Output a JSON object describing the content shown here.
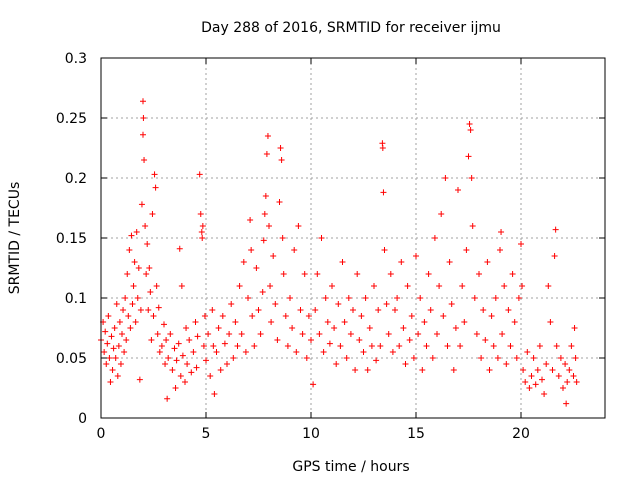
{
  "chart_data": {
    "type": "scatter",
    "title": "Day 288 of 2016, SRMTID for receiver ijmu",
    "xlabel": "GPS time / hours",
    "ylabel": "SRMTID / TECUs",
    "xlim": [
      0,
      24
    ],
    "ylim": [
      0,
      0.3
    ],
    "xticks": [
      0,
      5,
      10,
      15,
      20
    ],
    "yticks": [
      0,
      0.05,
      0.1,
      0.15,
      0.2,
      0.25,
      0.3
    ],
    "xtick_labels": [
      "0",
      "5",
      "10",
      "15",
      "20"
    ],
    "ytick_labels": [
      "0",
      "0.05",
      "0.1",
      "0.15",
      "0.2",
      "0.25",
      "0.3"
    ],
    "grid": true,
    "marker": "+",
    "series": [
      {
        "name": "SRMTID",
        "color": "#ff0000",
        "points": [
          [
            0.0,
            0.065
          ],
          [
            0.1,
            0.08
          ],
          [
            0.15,
            0.055
          ],
          [
            0.2,
            0.072
          ],
          [
            0.25,
            0.045
          ],
          [
            0.3,
            0.062
          ],
          [
            0.35,
            0.085
          ],
          [
            0.4,
            0.05
          ],
          [
            0.45,
            0.03
          ],
          [
            0.5,
            0.068
          ],
          [
            0.55,
            0.04
          ],
          [
            0.6,
            0.058
          ],
          [
            0.65,
            0.075
          ],
          [
            0.7,
            0.05
          ],
          [
            0.75,
            0.095
          ],
          [
            0.8,
            0.035
          ],
          [
            0.85,
            0.06
          ],
          [
            0.9,
            0.08
          ],
          [
            0.95,
            0.045
          ],
          [
            1.0,
            0.07
          ],
          [
            1.05,
            0.09
          ],
          [
            1.1,
            0.055
          ],
          [
            1.15,
            0.1
          ],
          [
            1.2,
            0.065
          ],
          [
            1.25,
            0.12
          ],
          [
            1.3,
            0.085
          ],
          [
            1.35,
            0.14
          ],
          [
            1.4,
            0.075
          ],
          [
            1.45,
            0.152
          ],
          [
            1.5,
            0.095
          ],
          [
            1.55,
            0.11
          ],
          [
            1.6,
            0.13
          ],
          [
            1.65,
            0.08
          ],
          [
            1.7,
            0.155
          ],
          [
            1.75,
            0.1
          ],
          [
            1.8,
            0.125
          ],
          [
            1.85,
            0.032
          ],
          [
            1.9,
            0.09
          ],
          [
            1.95,
            0.178
          ],
          [
            2.0,
            0.236
          ],
          [
            2.0,
            0.264
          ],
          [
            2.02,
            0.25
          ],
          [
            2.05,
            0.215
          ],
          [
            2.1,
            0.16
          ],
          [
            2.15,
            0.12
          ],
          [
            2.2,
            0.145
          ],
          [
            2.25,
            0.09
          ],
          [
            2.3,
            0.125
          ],
          [
            2.35,
            0.105
          ],
          [
            2.4,
            0.065
          ],
          [
            2.45,
            0.17
          ],
          [
            2.5,
            0.085
          ],
          [
            2.55,
            0.203
          ],
          [
            2.6,
            0.192
          ],
          [
            2.65,
            0.11
          ],
          [
            2.7,
            0.07
          ],
          [
            2.75,
            0.092
          ],
          [
            2.8,
            0.055
          ],
          [
            2.9,
            0.06
          ],
          [
            3.0,
            0.078
          ],
          [
            3.05,
            0.045
          ],
          [
            3.1,
            0.065
          ],
          [
            3.15,
            0.016
          ],
          [
            3.2,
            0.05
          ],
          [
            3.3,
            0.07
          ],
          [
            3.4,
            0.04
          ],
          [
            3.5,
            0.058
          ],
          [
            3.55,
            0.025
          ],
          [
            3.6,
            0.048
          ],
          [
            3.7,
            0.062
          ],
          [
            3.75,
            0.141
          ],
          [
            3.8,
            0.035
          ],
          [
            3.85,
            0.11
          ],
          [
            3.9,
            0.052
          ],
          [
            4.0,
            0.03
          ],
          [
            4.05,
            0.075
          ],
          [
            4.1,
            0.045
          ],
          [
            4.2,
            0.065
          ],
          [
            4.3,
            0.038
          ],
          [
            4.4,
            0.055
          ],
          [
            4.5,
            0.08
          ],
          [
            4.55,
            0.042
          ],
          [
            4.6,
            0.068
          ],
          [
            4.7,
            0.203
          ],
          [
            4.75,
            0.17
          ],
          [
            4.8,
            0.155
          ],
          [
            4.82,
            0.15
          ],
          [
            4.85,
            0.16
          ],
          [
            4.9,
            0.06
          ],
          [
            4.95,
            0.085
          ],
          [
            5.0,
            0.048
          ],
          [
            5.1,
            0.07
          ],
          [
            5.2,
            0.035
          ],
          [
            5.3,
            0.09
          ],
          [
            5.35,
            0.06
          ],
          [
            5.4,
            0.02
          ],
          [
            5.5,
            0.055
          ],
          [
            5.6,
            0.075
          ],
          [
            5.7,
            0.04
          ],
          [
            5.8,
            0.085
          ],
          [
            5.9,
            0.062
          ],
          [
            6.0,
            0.045
          ],
          [
            6.1,
            0.07
          ],
          [
            6.2,
            0.095
          ],
          [
            6.3,
            0.05
          ],
          [
            6.4,
            0.08
          ],
          [
            6.5,
            0.06
          ],
          [
            6.6,
            0.11
          ],
          [
            6.7,
            0.07
          ],
          [
            6.8,
            0.13
          ],
          [
            6.9,
            0.055
          ],
          [
            7.0,
            0.1
          ],
          [
            7.1,
            0.165
          ],
          [
            7.15,
            0.14
          ],
          [
            7.2,
            0.085
          ],
          [
            7.3,
            0.06
          ],
          [
            7.4,
            0.125
          ],
          [
            7.5,
            0.09
          ],
          [
            7.6,
            0.07
          ],
          [
            7.7,
            0.105
          ],
          [
            7.75,
            0.148
          ],
          [
            7.8,
            0.17
          ],
          [
            7.85,
            0.185
          ],
          [
            7.9,
            0.22
          ],
          [
            7.95,
            0.235
          ],
          [
            8.0,
            0.16
          ],
          [
            8.05,
            0.11
          ],
          [
            8.1,
            0.08
          ],
          [
            8.2,
            0.135
          ],
          [
            8.3,
            0.095
          ],
          [
            8.4,
            0.065
          ],
          [
            8.5,
            0.18
          ],
          [
            8.55,
            0.225
          ],
          [
            8.6,
            0.215
          ],
          [
            8.65,
            0.15
          ],
          [
            8.7,
            0.12
          ],
          [
            8.8,
            0.085
          ],
          [
            8.9,
            0.06
          ],
          [
            9.0,
            0.1
          ],
          [
            9.1,
            0.075
          ],
          [
            9.2,
            0.14
          ],
          [
            9.3,
            0.055
          ],
          [
            9.4,
            0.16
          ],
          [
            9.5,
            0.09
          ],
          [
            9.6,
            0.07
          ],
          [
            9.7,
            0.12
          ],
          [
            9.8,
            0.05
          ],
          [
            9.9,
            0.085
          ],
          [
            10.0,
            0.065
          ],
          [
            10.1,
            0.028
          ],
          [
            10.2,
            0.09
          ],
          [
            10.3,
            0.12
          ],
          [
            10.4,
            0.07
          ],
          [
            10.5,
            0.15
          ],
          [
            10.6,
            0.055
          ],
          [
            10.7,
            0.1
          ],
          [
            10.8,
            0.08
          ],
          [
            10.9,
            0.062
          ],
          [
            11.0,
            0.11
          ],
          [
            11.1,
            0.075
          ],
          [
            11.2,
            0.045
          ],
          [
            11.3,
            0.095
          ],
          [
            11.4,
            0.06
          ],
          [
            11.5,
            0.13
          ],
          [
            11.6,
            0.08
          ],
          [
            11.7,
            0.05
          ],
          [
            11.8,
            0.1
          ],
          [
            11.9,
            0.07
          ],
          [
            12.0,
            0.09
          ],
          [
            12.1,
            0.04
          ],
          [
            12.2,
            0.12
          ],
          [
            12.3,
            0.065
          ],
          [
            12.4,
            0.085
          ],
          [
            12.5,
            0.055
          ],
          [
            12.6,
            0.1
          ],
          [
            12.7,
            0.04
          ],
          [
            12.8,
            0.075
          ],
          [
            12.9,
            0.06
          ],
          [
            13.0,
            0.11
          ],
          [
            13.1,
            0.048
          ],
          [
            13.2,
            0.09
          ],
          [
            13.3,
            0.06
          ],
          [
            13.4,
            0.229
          ],
          [
            13.42,
            0.225
          ],
          [
            13.45,
            0.188
          ],
          [
            13.5,
            0.14
          ],
          [
            13.6,
            0.095
          ],
          [
            13.7,
            0.07
          ],
          [
            13.8,
            0.12
          ],
          [
            13.9,
            0.055
          ],
          [
            14.0,
            0.09
          ],
          [
            14.1,
            0.1
          ],
          [
            14.2,
            0.06
          ],
          [
            14.3,
            0.13
          ],
          [
            14.4,
            0.075
          ],
          [
            14.5,
            0.045
          ],
          [
            14.6,
            0.11
          ],
          [
            14.7,
            0.065
          ],
          [
            14.8,
            0.085
          ],
          [
            14.9,
            0.05
          ],
          [
            15.0,
            0.135
          ],
          [
            15.1,
            0.07
          ],
          [
            15.2,
            0.1
          ],
          [
            15.3,
            0.04
          ],
          [
            15.4,
            0.08
          ],
          [
            15.5,
            0.06
          ],
          [
            15.6,
            0.12
          ],
          [
            15.7,
            0.09
          ],
          [
            15.8,
            0.05
          ],
          [
            15.9,
            0.15
          ],
          [
            16.0,
            0.07
          ],
          [
            16.1,
            0.11
          ],
          [
            16.2,
            0.17
          ],
          [
            16.3,
            0.085
          ],
          [
            16.4,
            0.2
          ],
          [
            16.5,
            0.06
          ],
          [
            16.6,
            0.13
          ],
          [
            16.7,
            0.095
          ],
          [
            16.8,
            0.04
          ],
          [
            16.9,
            0.075
          ],
          [
            17.0,
            0.19
          ],
          [
            17.1,
            0.06
          ],
          [
            17.2,
            0.11
          ],
          [
            17.3,
            0.08
          ],
          [
            17.4,
            0.14
          ],
          [
            17.5,
            0.218
          ],
          [
            17.55,
            0.245
          ],
          [
            17.6,
            0.24
          ],
          [
            17.65,
            0.2
          ],
          [
            17.7,
            0.16
          ],
          [
            17.8,
            0.1
          ],
          [
            17.9,
            0.07
          ],
          [
            18.0,
            0.12
          ],
          [
            18.1,
            0.05
          ],
          [
            18.2,
            0.09
          ],
          [
            18.3,
            0.065
          ],
          [
            18.4,
            0.13
          ],
          [
            18.5,
            0.04
          ],
          [
            18.6,
            0.085
          ],
          [
            18.7,
            0.06
          ],
          [
            18.8,
            0.1
          ],
          [
            18.9,
            0.05
          ],
          [
            19.0,
            0.14
          ],
          [
            19.05,
            0.155
          ],
          [
            19.1,
            0.07
          ],
          [
            19.2,
            0.11
          ],
          [
            19.3,
            0.045
          ],
          [
            19.4,
            0.09
          ],
          [
            19.5,
            0.06
          ],
          [
            19.6,
            0.12
          ],
          [
            19.7,
            0.08
          ],
          [
            19.8,
            0.05
          ],
          [
            19.9,
            0.1
          ],
          [
            20.0,
            0.145
          ],
          [
            20.05,
            0.11
          ],
          [
            20.1,
            0.04
          ],
          [
            20.2,
            0.03
          ],
          [
            20.3,
            0.055
          ],
          [
            20.4,
            0.025
          ],
          [
            20.5,
            0.035
          ],
          [
            20.6,
            0.05
          ],
          [
            20.7,
            0.028
          ],
          [
            20.8,
            0.04
          ],
          [
            20.9,
            0.06
          ],
          [
            21.0,
            0.032
          ],
          [
            21.1,
            0.02
          ],
          [
            21.2,
            0.045
          ],
          [
            21.3,
            0.11
          ],
          [
            21.4,
            0.08
          ],
          [
            21.5,
            0.04
          ],
          [
            21.6,
            0.135
          ],
          [
            21.65,
            0.157
          ],
          [
            21.7,
            0.06
          ],
          [
            21.8,
            0.035
          ],
          [
            21.9,
            0.05
          ],
          [
            22.0,
            0.025
          ],
          [
            22.1,
            0.045
          ],
          [
            22.15,
            0.012
          ],
          [
            22.2,
            0.03
          ],
          [
            22.3,
            0.04
          ],
          [
            22.4,
            0.06
          ],
          [
            22.5,
            0.035
          ],
          [
            22.55,
            0.075
          ],
          [
            22.6,
            0.05
          ],
          [
            22.65,
            0.03
          ]
        ]
      }
    ]
  }
}
